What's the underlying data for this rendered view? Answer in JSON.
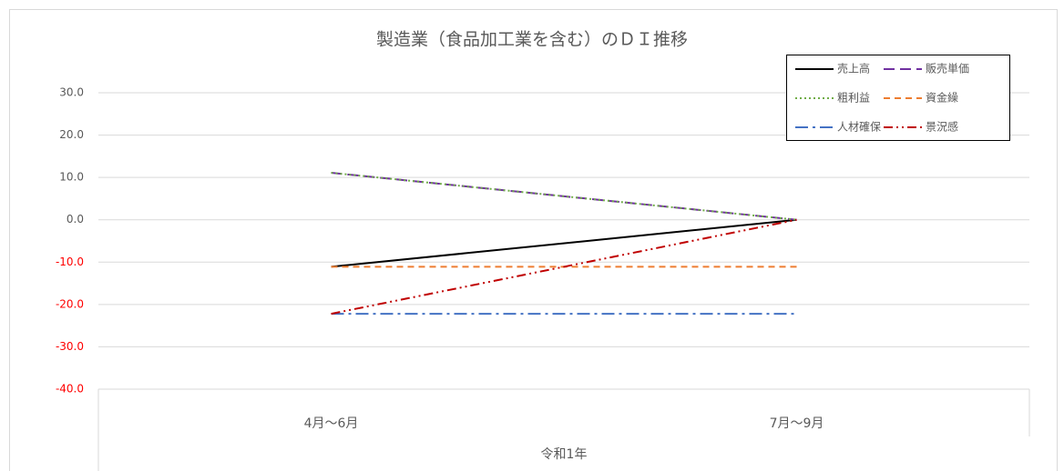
{
  "chart_data": {
    "type": "line",
    "title": "製造業（食品加工業を含む）のＤＩ推移",
    "categories": [
      "4月～6月",
      "7月～9月"
    ],
    "category_group": "令和1年",
    "series": [
      {
        "name": "売上高",
        "color": "#000000",
        "dash": "none",
        "values": [
          -11.1,
          0
        ]
      },
      {
        "name": "販売単価",
        "color": "#7030a0",
        "dash": "12,6",
        "values": [
          11.1,
          0
        ]
      },
      {
        "name": "粗利益",
        "color": "#70ad47",
        "dash": "2,3",
        "values": [
          11.1,
          0
        ]
      },
      {
        "name": "資金繰",
        "color": "#ed7d31",
        "dash": "7,5",
        "values": [
          -11.1,
          -11.1
        ]
      },
      {
        "name": "人材確保",
        "color": "#4472c4",
        "dash": "14,5,3,5",
        "values": [
          -22.2,
          -22.2
        ]
      },
      {
        "name": "景況感",
        "color": "#c00000",
        "dash": "10,4,2,4,2,4",
        "values": [
          -22.2,
          0
        ]
      }
    ],
    "ylim": [
      -40,
      30
    ],
    "yticks": [
      {
        "value": 30,
        "label": "30.0"
      },
      {
        "value": 20,
        "label": "20.0"
      },
      {
        "value": 10,
        "label": "10.0"
      },
      {
        "value": 0,
        "label": "0.0"
      },
      {
        "value": -10,
        "label": "-10.0"
      },
      {
        "value": -20,
        "label": "-20.0"
      },
      {
        "value": -30,
        "label": "-30.0"
      },
      {
        "value": -40,
        "label": "-40.0"
      }
    ],
    "negative_tick_color": "#ff0000",
    "grid": true,
    "legend": "top-right"
  }
}
